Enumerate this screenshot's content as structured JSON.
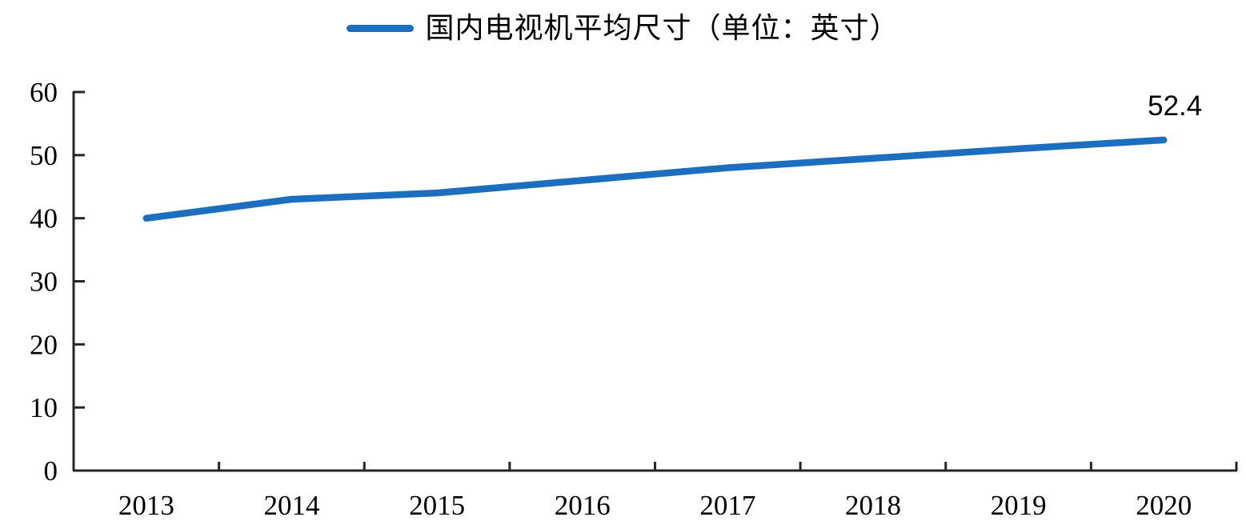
{
  "chart_data": {
    "type": "line",
    "legend_label": "国内电视机平均尺寸（单位：英寸）",
    "categories": [
      "2013",
      "2014",
      "2015",
      "2016",
      "2017",
      "2018",
      "2019",
      "2020"
    ],
    "series": [
      {
        "name": "国内电视机平均尺寸（单位：英寸）",
        "values": [
          40,
          43,
          44,
          46,
          48,
          49.5,
          51,
          52.4
        ]
      }
    ],
    "xlabel": "",
    "ylabel": "",
    "ylim": [
      0,
      60
    ],
    "yticks": [
      0,
      10,
      20,
      30,
      40,
      50,
      60
    ],
    "grid": false,
    "legend_position": "top-center",
    "last_point_label": "52.4",
    "line_color": "#1C6FBE",
    "axis_color": "#262626",
    "label_color": "#000000"
  }
}
